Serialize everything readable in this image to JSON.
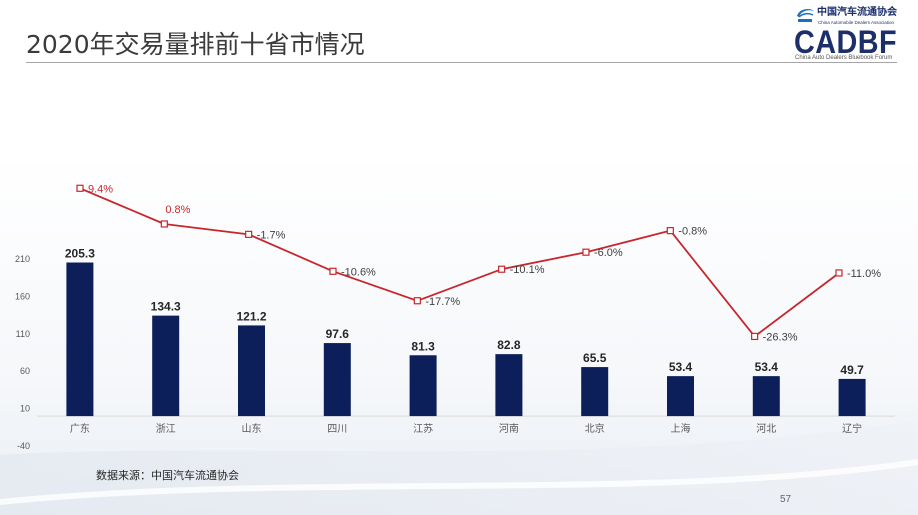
{
  "slide": {
    "title": "2020年交易量排前十省市情况",
    "page_number": "57"
  },
  "logo": {
    "org_name_cn": "中国汽车流通协会",
    "org_name_en": "China Automobile Dealers Association",
    "brand": "CADBF",
    "brand_subtitle": "China Auto Dealers Bluebook Forum",
    "brand_color": "#1c2f6b",
    "emblem_color": "#1b6fc2",
    "emblem_icon": "cada-emblem-icon"
  },
  "chart_data": {
    "type": "bar",
    "categories": [
      "广东",
      "浙江",
      "山东",
      "四川",
      "江苏",
      "河南",
      "北京",
      "上海",
      "河北",
      "辽宁"
    ],
    "series": [
      {
        "type": "bar",
        "values": [
          205.3,
          134.3,
          121.2,
          97.6,
          81.3,
          82.8,
          65.5,
          53.4,
          53.4,
          49.7
        ],
        "data_labels": [
          "205.3",
          "134.3",
          "121.2",
          "97.6",
          "81.3",
          "82.8",
          "65.5",
          "53.4",
          "53.4",
          "49.7"
        ],
        "color": "#0c1f5b"
      },
      {
        "type": "line",
        "axis": "secondary",
        "values": [
          9.4,
          0.8,
          -1.7,
          -10.6,
          -17.7,
          -10.1,
          -6.0,
          -0.8,
          -26.3,
          -11.0
        ],
        "data_labels": [
          "9.4%",
          "0.8%",
          "-1.7%",
          "-10.6%",
          "-17.7%",
          "-10.1%",
          "-6.0%",
          "-0.8%",
          "-26.3%",
          "-11.0%"
        ],
        "label_positions": [
          "right",
          "above",
          "right",
          "right",
          "right",
          "right",
          "right",
          "right",
          "right",
          "right"
        ],
        "color": "#c8262c",
        "positive_label_color": "#c8262c",
        "negative_label_color": "#404040"
      }
    ],
    "yticks": [
      210,
      160,
      110,
      60,
      10,
      -40
    ],
    "ylim": [
      -40,
      210
    ],
    "grid": false,
    "legend": "none"
  },
  "footer": {
    "source": "数据来源：中国汽车流通协会"
  }
}
